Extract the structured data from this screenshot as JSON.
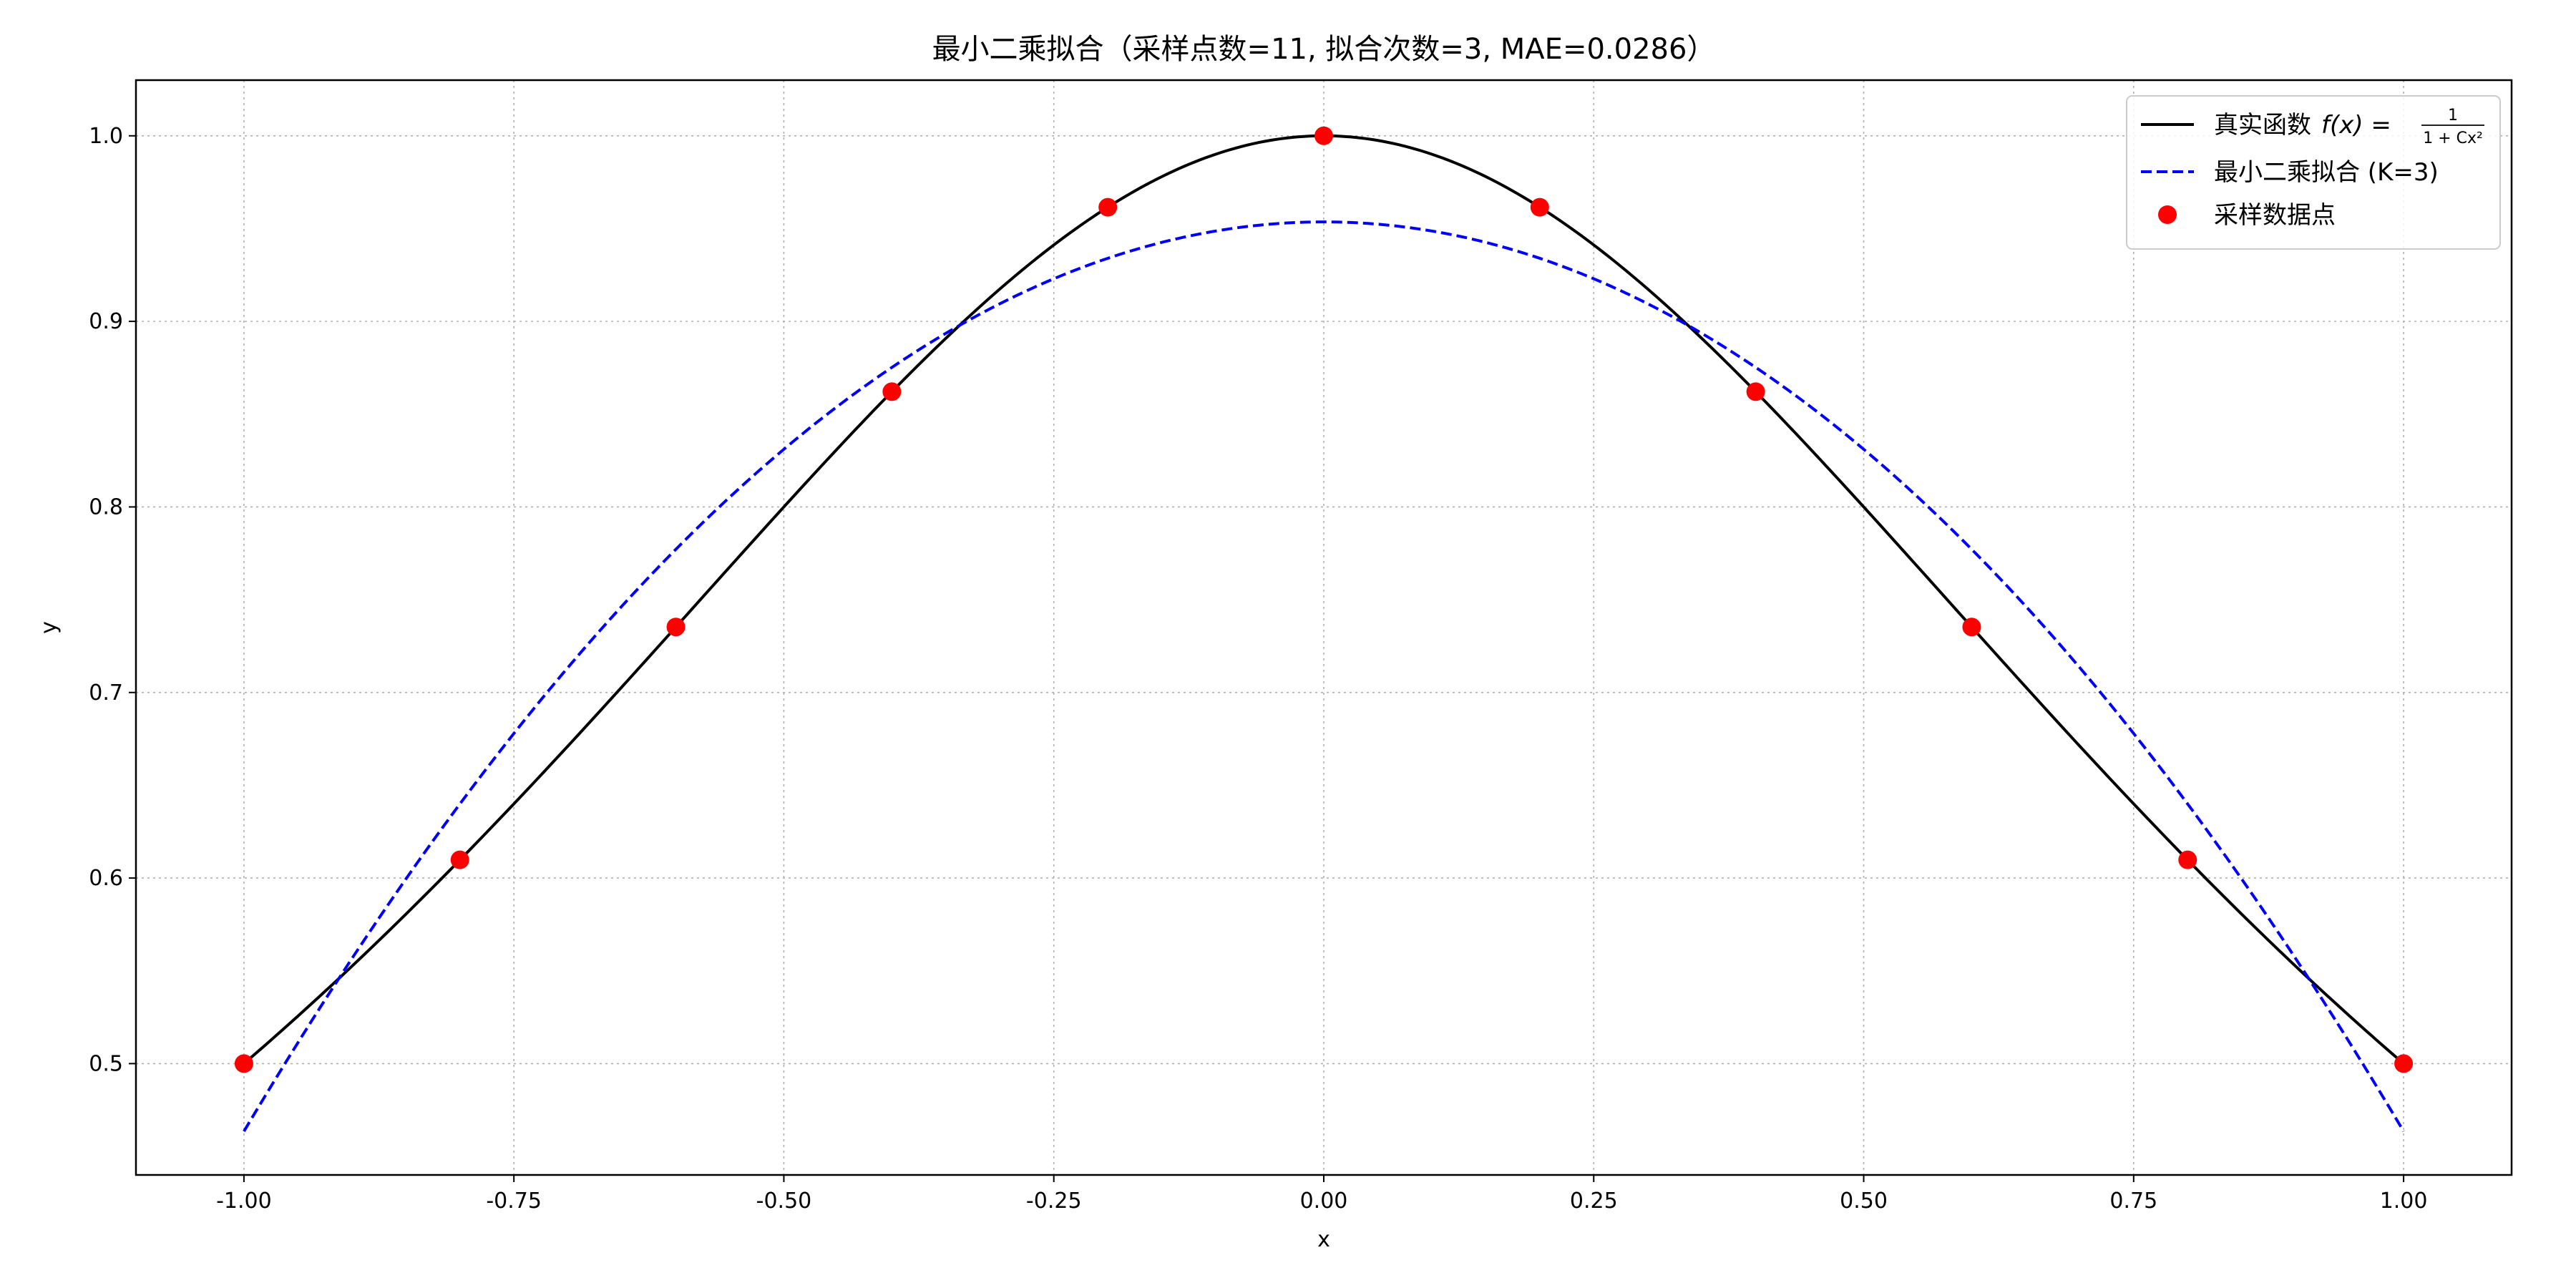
{
  "chart_data": {
    "type": "line",
    "title": "最小二乘拟合（采样点数=11, 拟合次数=3, MAE=0.0286）",
    "xlabel": "x",
    "ylabel": "y",
    "xlim": [
      -1.1,
      1.1
    ],
    "ylim": [
      0.44,
      1.03
    ],
    "x_ticks": [
      -1.0,
      -0.75,
      -0.5,
      -0.25,
      0.0,
      0.25,
      0.5,
      0.75,
      1.0
    ],
    "x_tick_labels": [
      "-1.00",
      "-0.75",
      "-0.50",
      "-0.25",
      "0.00",
      "0.25",
      "0.50",
      "0.75",
      "1.00"
    ],
    "y_ticks": [
      0.5,
      0.6,
      0.7,
      0.8,
      0.9,
      1.0
    ],
    "y_tick_labels": [
      "0.5",
      "0.6",
      "0.7",
      "0.8",
      "0.9",
      "1.0"
    ],
    "grid": true,
    "legend_position": "top-right",
    "series": [
      {
        "name": "真实函数 f(x) = 1/(1+Cx²)",
        "legend_prefix": "真实函数",
        "legend_math_lhs": "f(x) =",
        "legend_math_num": "1",
        "legend_math_den": "1 + Cx²",
        "style": "solid",
        "color": "#000000",
        "C": 1.0
      },
      {
        "name": "最小二乘拟合 (K=3)",
        "style": "dashed",
        "color": "#0000ff",
        "coefficients": [
          0.9536,
          0.0,
          -0.4901,
          0.0
        ]
      },
      {
        "name": "采样数据点",
        "style": "markers",
        "color": "#ff0000",
        "x": [
          -1.0,
          -0.8,
          -0.6,
          -0.4,
          -0.2,
          0.0,
          0.2,
          0.4,
          0.6,
          0.8,
          1.0
        ],
        "y": [
          0.5,
          0.6098,
          0.7353,
          0.8621,
          0.9615,
          1.0,
          0.9615,
          0.8621,
          0.7353,
          0.6098,
          0.5
        ]
      }
    ]
  }
}
